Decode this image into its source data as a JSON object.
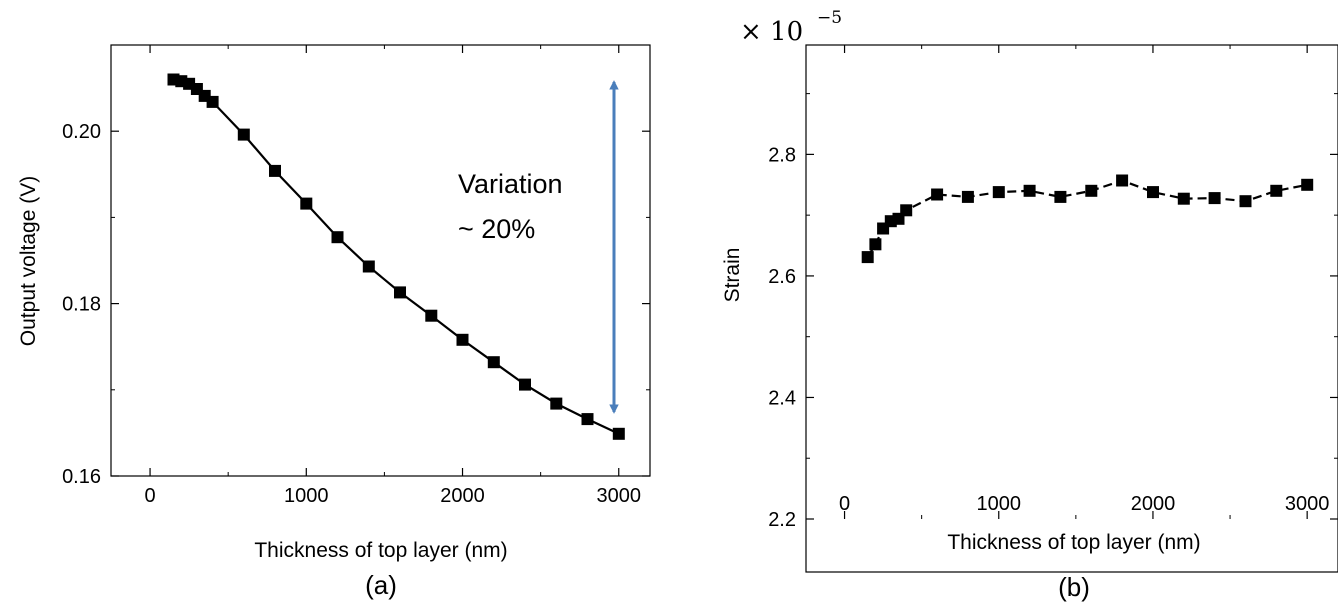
{
  "chart_data": [
    {
      "type": "line",
      "caption": "(a)",
      "xlabel": "Thickness of top layer (nm)",
      "ylabel": "Output voltage (V)",
      "xlim": [
        -250,
        3200
      ],
      "ylim": [
        0.16,
        0.21
      ],
      "xticks": [
        "0",
        "1000",
        "2000",
        "3000"
      ],
      "yticks": [
        "0.16",
        "0.18",
        "0.20"
      ],
      "marker": "square",
      "line_style": "solid",
      "annotation": {
        "line1": "Variation",
        "line2": "~ 20%"
      },
      "arrow_color": "#4a7ebb",
      "series": [
        {
          "x": [
            150,
            200,
            250,
            300,
            350,
            400,
            600,
            800,
            1000,
            1200,
            1400,
            1600,
            1800,
            2000,
            2200,
            2400,
            2600,
            2800,
            3000
          ],
          "y": [
            0.206,
            0.2058,
            0.2055,
            0.2049,
            0.2041,
            0.2034,
            0.1996,
            0.1954,
            0.1916,
            0.1877,
            0.1843,
            0.1813,
            0.1786,
            0.1758,
            0.1732,
            0.1706,
            0.1684,
            0.1666,
            0.1649
          ]
        }
      ]
    },
    {
      "type": "line",
      "caption": "(b)",
      "xlabel": "Thickness of top layer (nm)",
      "ylabel": "Strain",
      "xlim": [
        -250,
        3200
      ],
      "ylim": [
        2.2,
        2.98
      ],
      "xticks": [
        "0",
        "1000",
        "2000",
        "3000"
      ],
      "yticks": [
        "2.2",
        "2.4",
        "2.6",
        "2.8"
      ],
      "multiplier": {
        "base": "× 10",
        "exp": "−5"
      },
      "marker": "square",
      "line_style": "dashed",
      "series": [
        {
          "x": [
            150,
            200,
            250,
            300,
            350,
            400,
            600,
            800,
            1000,
            1200,
            1400,
            1600,
            1800,
            2000,
            2200,
            2400,
            2600,
            2800,
            3000
          ],
          "y": [
            2.631,
            2.652,
            2.678,
            2.69,
            2.694,
            2.708,
            2.734,
            2.73,
            2.738,
            2.74,
            2.73,
            2.74,
            2.757,
            2.738,
            2.727,
            2.728,
            2.723,
            2.74,
            2.75
          ]
        }
      ]
    }
  ]
}
